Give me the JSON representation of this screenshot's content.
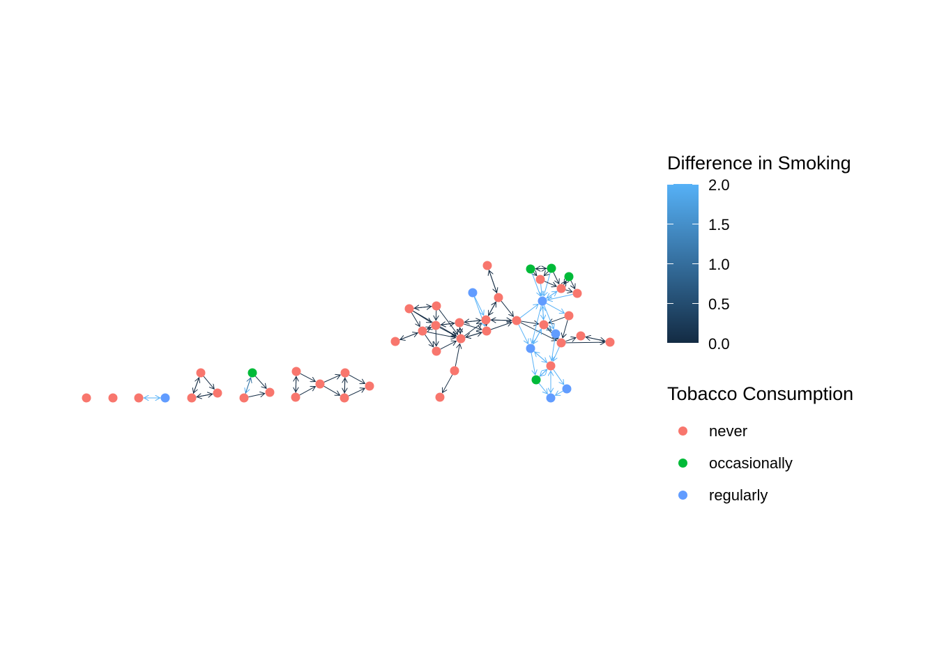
{
  "legend_edge": {
    "title": "Difference in Smoking",
    "ticks": [
      "2.0",
      "1.5",
      "1.0",
      "0.5",
      "0.0"
    ],
    "gradient_low": "#132B43",
    "gradient_high": "#56B1F7"
  },
  "legend_nodes": {
    "title": "Tobacco Consumption",
    "items": [
      {
        "label": "never",
        "color": "#F8766D"
      },
      {
        "label": "occasionally",
        "color": "#00BA38"
      },
      {
        "label": "regularly",
        "color": "#619CFF"
      }
    ]
  }
}
